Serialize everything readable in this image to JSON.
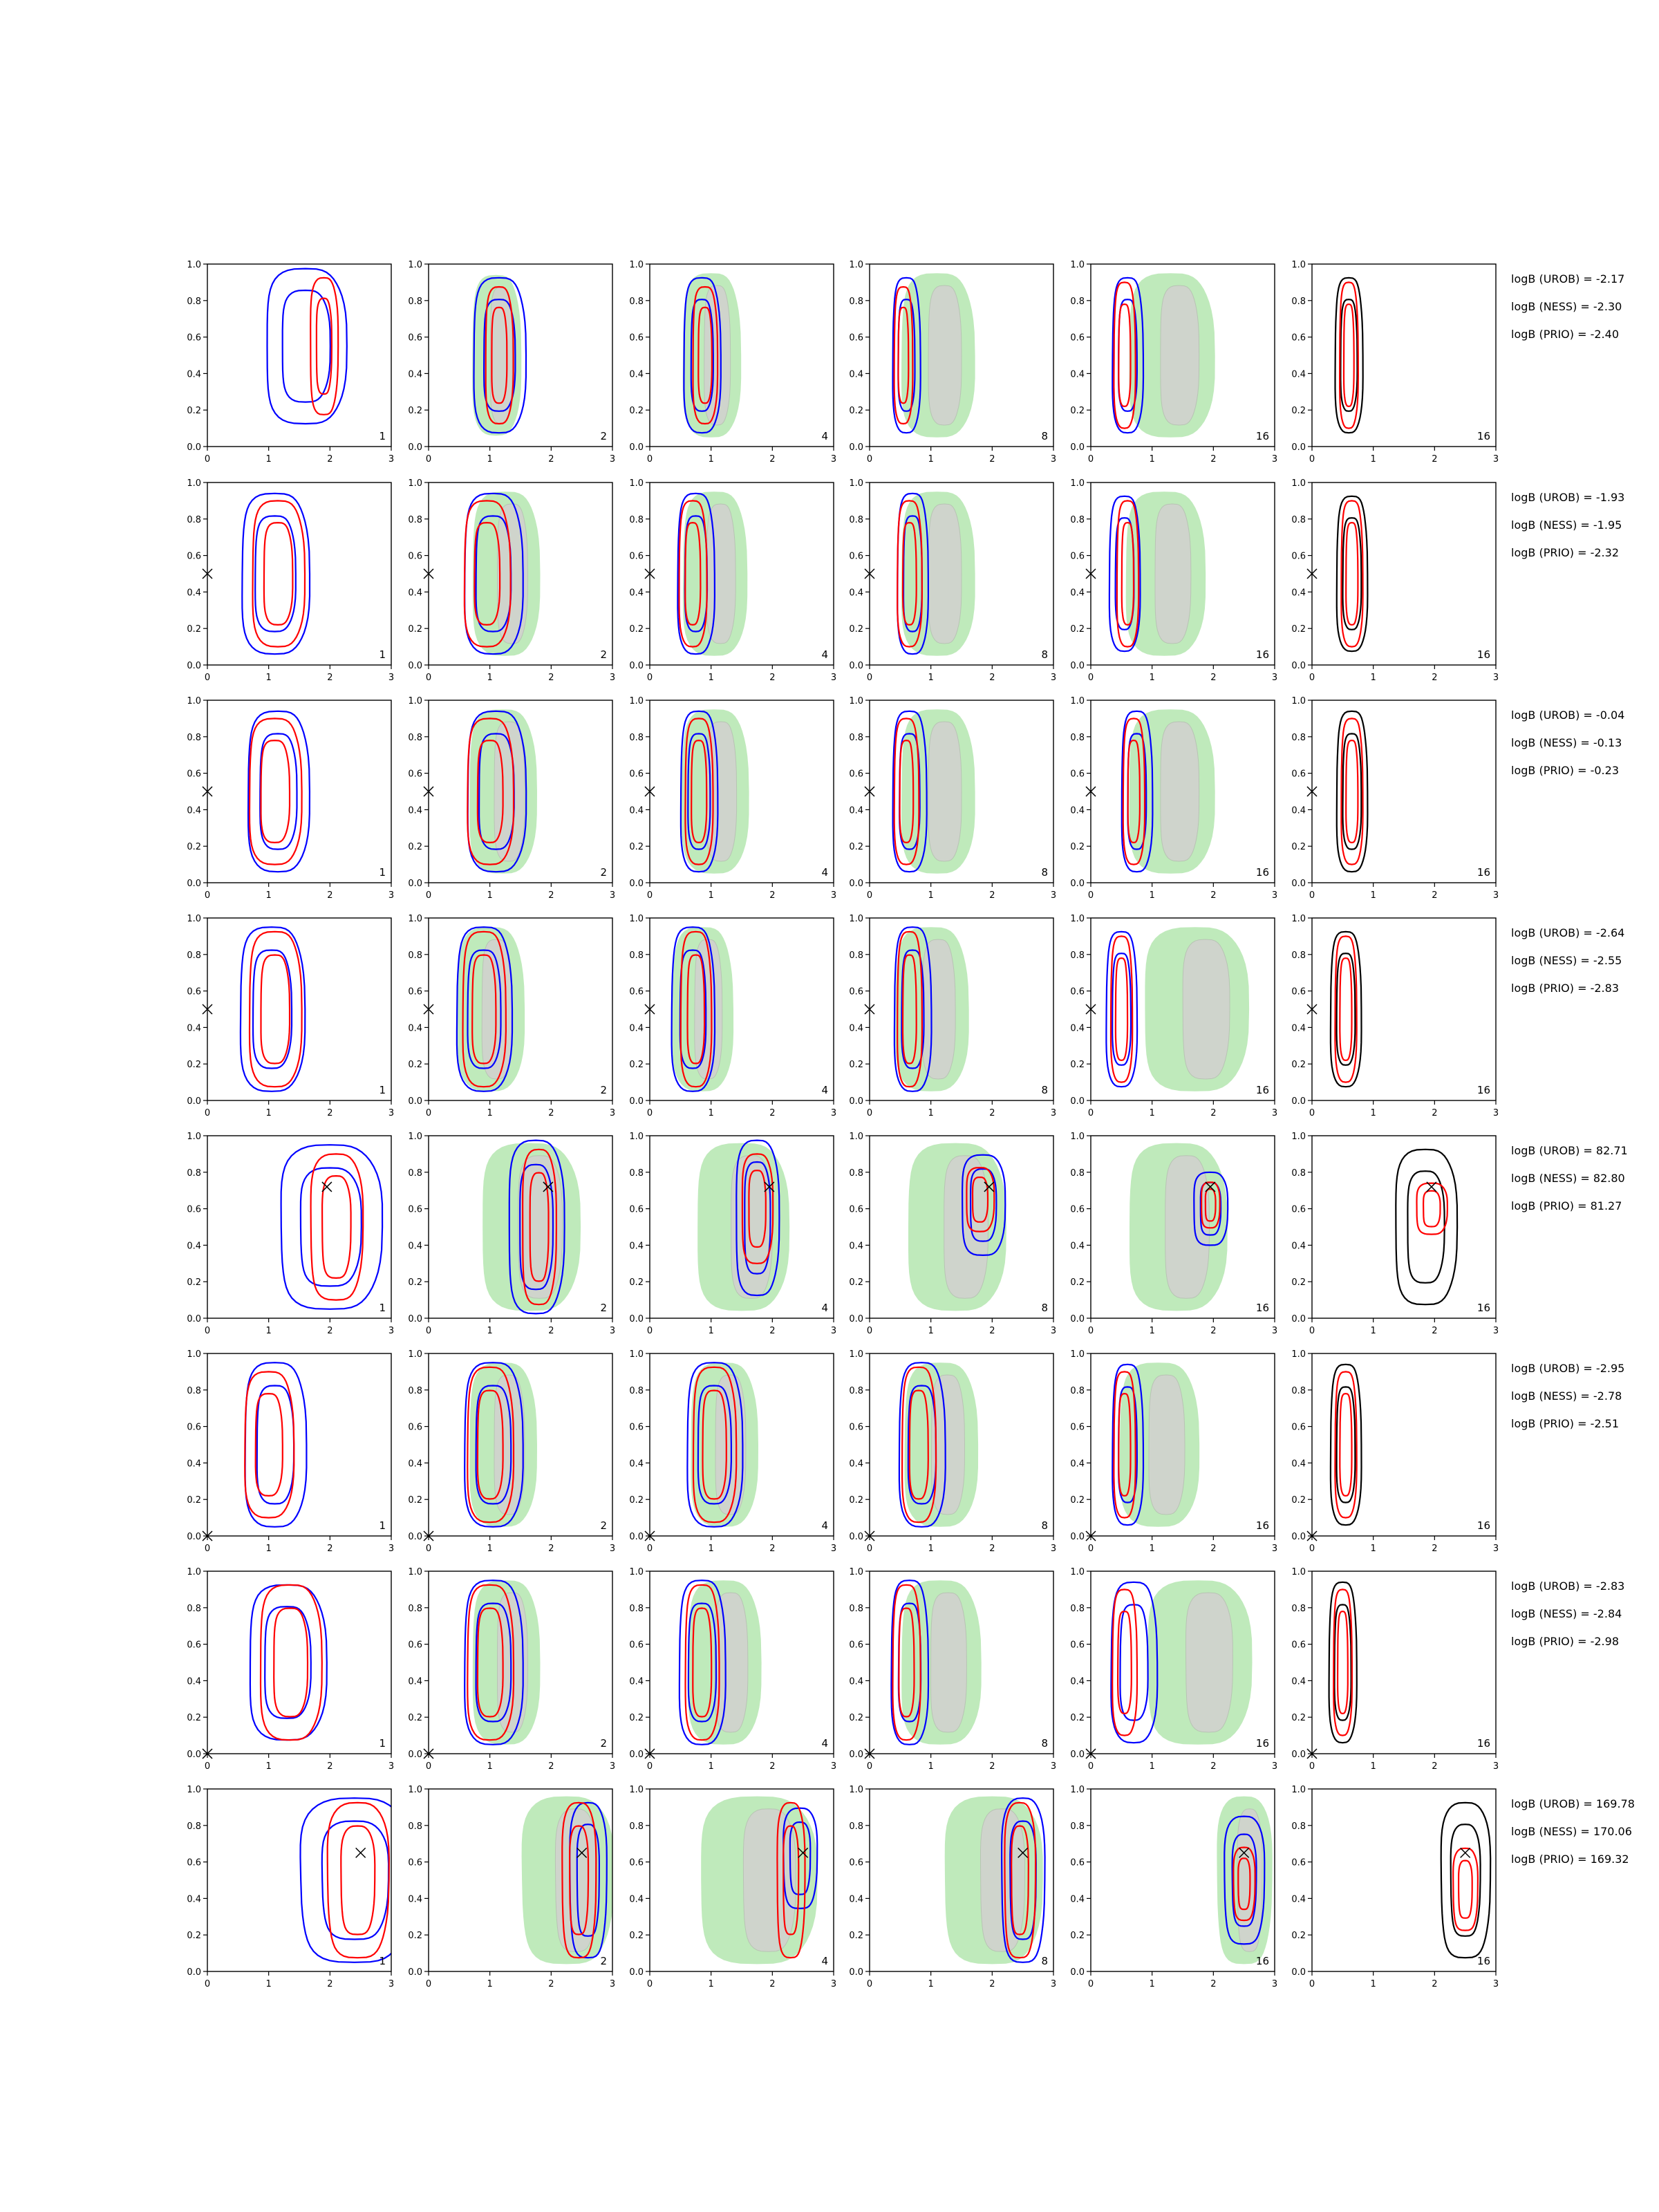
{
  "chart_data": {
    "type": "contour-grid",
    "x_range": [
      0,
      3
    ],
    "y_range": [
      0,
      1
    ],
    "x_ticks": [
      "0",
      "1",
      "2",
      "3"
    ],
    "y_ticks": [
      "0.0",
      "0.2",
      "0.4",
      "0.6",
      "0.8",
      "1.0"
    ],
    "column_labels": [
      "1",
      "2",
      "4",
      "8",
      "16",
      "16"
    ],
    "colors": {
      "blue": "#0000ff",
      "red": "#ff0000",
      "black": "#000000",
      "green_fill": "#bfeabb",
      "grey_fill": "#cfd4cc"
    },
    "rows": [
      {
        "marker": null,
        "stats": [
          "logB (UROB) = -2.17",
          "logB (NESS) = -2.30",
          "logB (PRIO) = -2.40"
        ],
        "panels": [
          {
            "red": [
              1.9,
              0.55,
              0.45,
              0.75
            ],
            "blue": [
              1.6,
              0.55,
              1.3,
              0.85
            ],
            "green": null
          },
          {
            "red": [
              1.15,
              0.5,
              0.45,
              0.75
            ],
            "blue": [
              1.15,
              0.5,
              0.85,
              0.85
            ],
            "green": [
              1.1,
              0.5,
              0.8,
              0.88
            ]
          },
          {
            "red": [
              0.9,
              0.5,
              0.4,
              0.75
            ],
            "blue": [
              0.85,
              0.5,
              0.6,
              0.85
            ],
            "green": [
              1.0,
              0.5,
              0.95,
              0.9
            ]
          },
          {
            "red": [
              0.55,
              0.5,
              0.3,
              0.75
            ],
            "blue": [
              0.6,
              0.5,
              0.45,
              0.85
            ],
            "green": [
              1.1,
              0.5,
              1.2,
              0.9
            ]
          },
          {
            "red": [
              0.55,
              0.5,
              0.35,
              0.8
            ],
            "blue": [
              0.6,
              0.5,
              0.5,
              0.85
            ],
            "green": [
              1.3,
              0.5,
              1.4,
              0.9
            ]
          },
          {
            "red": [
              0.6,
              0.5,
              0.3,
              0.8
            ],
            "blue": [
              0.6,
              0.5,
              0.45,
              0.85
            ],
            "green": null,
            "black": true
          }
        ]
      },
      {
        "marker": [
          0.0,
          0.5
        ],
        "stats": [
          "logB (UROB) = -1.93",
          "logB (NESS) = -1.95",
          "logB (PRIO) = -2.32"
        ],
        "panels": [
          {
            "red": [
              1.15,
              0.5,
              0.85,
              0.8
            ],
            "blue": [
              1.1,
              0.5,
              1.1,
              0.88
            ],
            "green": null
          },
          {
            "red": [
              0.95,
              0.5,
              0.75,
              0.8
            ],
            "blue": [
              1.05,
              0.5,
              0.95,
              0.88
            ],
            "green": [
              1.25,
              0.5,
              1.1,
              0.9
            ]
          },
          {
            "red": [
              0.7,
              0.5,
              0.45,
              0.8
            ],
            "blue": [
              0.75,
              0.5,
              0.6,
              0.88
            ],
            "green": [
              1.05,
              0.5,
              1.05,
              0.9
            ]
          },
          {
            "red": [
              0.65,
              0.5,
              0.4,
              0.8
            ],
            "blue": [
              0.7,
              0.5,
              0.5,
              0.88
            ],
            "green": [
              1.1,
              0.5,
              1.2,
              0.9
            ]
          },
          {
            "red": [
              0.6,
              0.5,
              0.35,
              0.8
            ],
            "blue": [
              0.55,
              0.5,
              0.5,
              0.85
            ],
            "green": [
              1.2,
              0.5,
              1.3,
              0.9
            ]
          },
          {
            "red": [
              0.65,
              0.5,
              0.35,
              0.8
            ],
            "blue": [
              0.65,
              0.5,
              0.5,
              0.85
            ],
            "green": null,
            "black": true
          }
        ]
      },
      {
        "marker": [
          0.0,
          0.5
        ],
        "stats": [
          "logB (UROB) = -0.04",
          "logB (NESS) = -0.13",
          "logB (PRIO) = -0.23"
        ],
        "panels": [
          {
            "red": [
              1.1,
              0.5,
              0.85,
              0.8
            ],
            "blue": [
              1.15,
              0.5,
              1.0,
              0.88
            ],
            "green": null
          },
          {
            "red": [
              1.0,
              0.5,
              0.75,
              0.8
            ],
            "blue": [
              1.1,
              0.5,
              0.95,
              0.88
            ],
            "green": [
              1.2,
              0.5,
              1.1,
              0.9
            ]
          },
          {
            "red": [
              0.8,
              0.5,
              0.45,
              0.8
            ],
            "blue": [
              0.8,
              0.5,
              0.6,
              0.88
            ],
            "green": [
              1.05,
              0.5,
              1.1,
              0.9
            ]
          },
          {
            "red": [
              0.6,
              0.5,
              0.4,
              0.8
            ],
            "blue": [
              0.65,
              0.5,
              0.55,
              0.88
            ],
            "green": [
              1.1,
              0.5,
              1.2,
              0.9
            ]
          },
          {
            "red": [
              0.7,
              0.5,
              0.35,
              0.8
            ],
            "blue": [
              0.75,
              0.5,
              0.5,
              0.88
            ],
            "green": [
              1.3,
              0.5,
              1.4,
              0.9
            ]
          },
          {
            "red": [
              0.65,
              0.5,
              0.35,
              0.8
            ],
            "blue": [
              0.65,
              0.5,
              0.5,
              0.88
            ],
            "green": null,
            "black": true
          }
        ]
      },
      {
        "marker": [
          0.0,
          0.5
        ],
        "stats": [
          "logB (UROB) = -2.64",
          "logB (NESS) = -2.55",
          "logB (PRIO) = -2.83"
        ],
        "panels": [
          {
            "red": [
              1.1,
              0.5,
              0.85,
              0.85
            ],
            "blue": [
              1.05,
              0.5,
              1.05,
              0.9
            ],
            "green": null
          },
          {
            "red": [
              0.9,
              0.5,
              0.7,
              0.85
            ],
            "blue": [
              0.9,
              0.5,
              0.9,
              0.9
            ],
            "green": [
              1.0,
              0.5,
              1.1,
              0.9
            ]
          },
          {
            "red": [
              0.75,
              0.5,
              0.5,
              0.85
            ],
            "blue": [
              0.7,
              0.5,
              0.7,
              0.9
            ],
            "green": [
              0.85,
              0.5,
              1.0,
              0.9
            ]
          },
          {
            "red": [
              0.65,
              0.5,
              0.4,
              0.85
            ],
            "blue": [
              0.7,
              0.5,
              0.6,
              0.9
            ],
            "green": [
              1.0,
              0.5,
              1.2,
              0.9
            ]
          },
          {
            "red": [
              0.5,
              0.5,
              0.35,
              0.8
            ],
            "blue": [
              0.5,
              0.5,
              0.5,
              0.85
            ],
            "green": [
              1.7,
              0.5,
              1.7,
              0.9
            ]
          },
          {
            "red": [
              0.55,
              0.5,
              0.35,
              0.8
            ],
            "blue": [
              0.55,
              0.5,
              0.5,
              0.85
            ],
            "green": null,
            "black": true
          }
        ]
      },
      {
        "marker": [
          1.95,
          0.72
        ],
        "stats": [
          "logB (UROB) = 82.71",
          "logB (NESS) = 82.80",
          "logB (PRIO) = 81.27"
        ],
        "panels": [
          {
            "red": [
              2.1,
              0.5,
              0.85,
              0.8
            ],
            "blue": [
              2.0,
              0.5,
              1.65,
              0.9
            ],
            "green": null
          },
          {
            "red": [
              1.8,
              0.5,
              0.55,
              0.85
            ],
            "blue": [
              1.75,
              0.5,
              0.9,
              0.95
            ],
            "green": [
              1.65,
              0.5,
              1.6,
              0.92
            ]
          },
          {
            "red": [
              1.75,
              0.6,
              0.5,
              0.6
            ],
            "blue": [
              1.75,
              0.55,
              0.7,
              0.85
            ],
            "green": [
              1.5,
              0.5,
              1.5,
              0.92
            ]
          },
          {
            "red": [
              1.8,
              0.65,
              0.45,
              0.35
            ],
            "blue": [
              1.85,
              0.62,
              0.7,
              0.55
            ],
            "green": [
              1.4,
              0.5,
              1.6,
              0.92
            ]
          },
          {
            "red": [
              1.95,
              0.62,
              0.3,
              0.25
            ],
            "blue": [
              1.95,
              0.6,
              0.55,
              0.4
            ],
            "green": [
              1.4,
              0.5,
              1.6,
              0.92
            ]
          },
          {
            "red": [
              1.95,
              0.6,
              0.5,
              0.28
            ],
            "blue": [
              1.85,
              0.5,
              1.0,
              0.85
            ],
            "green": null,
            "black": true
          }
        ]
      },
      {
        "marker": [
          0.0,
          0.0
        ],
        "stats": [
          "logB (UROB) = -2.95",
          "logB (NESS) = -2.78",
          "logB (PRIO) = -2.51"
        ],
        "panels": [
          {
            "red": [
              1.0,
              0.5,
              0.8,
              0.8
            ],
            "blue": [
              1.1,
              0.5,
              1.0,
              0.9
            ],
            "green": null
          },
          {
            "red": [
              1.0,
              0.5,
              0.75,
              0.85
            ],
            "blue": [
              1.05,
              0.5,
              0.95,
              0.9
            ],
            "green": [
              1.2,
              0.5,
              1.1,
              0.9
            ]
          },
          {
            "red": [
              1.05,
              0.5,
              0.7,
              0.85
            ],
            "blue": [
              1.05,
              0.5,
              0.9,
              0.9
            ],
            "green": [
              1.2,
              0.5,
              1.1,
              0.9
            ]
          },
          {
            "red": [
              0.8,
              0.5,
              0.55,
              0.85
            ],
            "blue": [
              0.85,
              0.5,
              0.75,
              0.9
            ],
            "green": [
              1.15,
              0.5,
              1.2,
              0.9
            ]
          },
          {
            "red": [
              0.55,
              0.5,
              0.35,
              0.8
            ],
            "blue": [
              0.6,
              0.5,
              0.5,
              0.88
            ],
            "green": [
              1.1,
              0.5,
              1.3,
              0.9
            ]
          },
          {
            "red": [
              0.55,
              0.5,
              0.35,
              0.8
            ],
            "blue": [
              0.55,
              0.5,
              0.5,
              0.88
            ],
            "green": null,
            "black": true
          }
        ]
      },
      {
        "marker": [
          0.0,
          0.0
        ],
        "stats": [
          "logB (UROB) = -2.83",
          "logB (NESS) = -2.84",
          "logB (PRIO) = -2.98"
        ],
        "panels": [
          {
            "red": [
              1.35,
              0.5,
              1.0,
              0.85
            ],
            "blue": [
              1.3,
              0.5,
              1.25,
              0.85
            ],
            "green": null
          },
          {
            "red": [
              1.0,
              0.5,
              0.75,
              0.85
            ],
            "blue": [
              1.05,
              0.5,
              0.95,
              0.9
            ],
            "green": [
              1.25,
              0.5,
              1.1,
              0.9
            ]
          },
          {
            "red": [
              0.85,
              0.5,
              0.55,
              0.85
            ],
            "blue": [
              0.85,
              0.5,
              0.75,
              0.9
            ],
            "green": [
              1.2,
              0.5,
              1.2,
              0.9
            ]
          },
          {
            "red": [
              0.6,
              0.5,
              0.45,
              0.85
            ],
            "blue": [
              0.65,
              0.5,
              0.6,
              0.9
            ],
            "green": [
              1.15,
              0.5,
              1.3,
              0.9
            ]
          },
          {
            "red": [
              0.55,
              0.5,
              0.4,
              0.8
            ],
            "blue": [
              0.7,
              0.5,
              0.75,
              0.88
            ],
            "green": [
              1.75,
              0.5,
              1.7,
              0.9
            ]
          },
          {
            "red": [
              0.5,
              0.5,
              0.3,
              0.8
            ],
            "blue": [
              0.5,
              0.5,
              0.45,
              0.88
            ],
            "green": null,
            "black": true
          }
        ]
      },
      {
        "marker": [
          2.5,
          0.65
        ],
        "stats": [
          "logB (UROB) = 169.78",
          "logB (NESS) = 170.06",
          "logB (PRIO) = 169.32"
        ],
        "panels": [
          {
            "red": [
              2.45,
              0.5,
              1.0,
              0.85
            ],
            "blue": [
              2.4,
              0.5,
              1.8,
              0.9
            ],
            "green": null
          },
          {
            "red": [
              2.45,
              0.5,
              0.55,
              0.85
            ],
            "blue": [
              2.6,
              0.5,
              0.6,
              0.85
            ],
            "green": [
              2.25,
              0.5,
              1.5,
              0.92
            ]
          },
          {
            "red": [
              2.3,
              0.5,
              0.45,
              0.85
            ],
            "blue": [
              2.45,
              0.62,
              0.55,
              0.55
            ],
            "green": [
              1.75,
              0.5,
              1.9,
              0.92
            ]
          },
          {
            "red": [
              2.45,
              0.5,
              0.5,
              0.85
            ],
            "blue": [
              2.5,
              0.5,
              0.7,
              0.9
            ],
            "green": [
              2.0,
              0.5,
              1.6,
              0.92
            ]
          },
          {
            "red": [
              2.5,
              0.48,
              0.35,
              0.4
            ],
            "blue": [
              2.5,
              0.5,
              0.65,
              0.7
            ],
            "green": [
              2.5,
              0.5,
              0.9,
              0.92
            ]
          },
          {
            "red": [
              2.5,
              0.45,
              0.4,
              0.45
            ],
            "blue": [
              2.5,
              0.5,
              0.8,
              0.85
            ],
            "green": null,
            "black": true
          }
        ]
      }
    ]
  }
}
